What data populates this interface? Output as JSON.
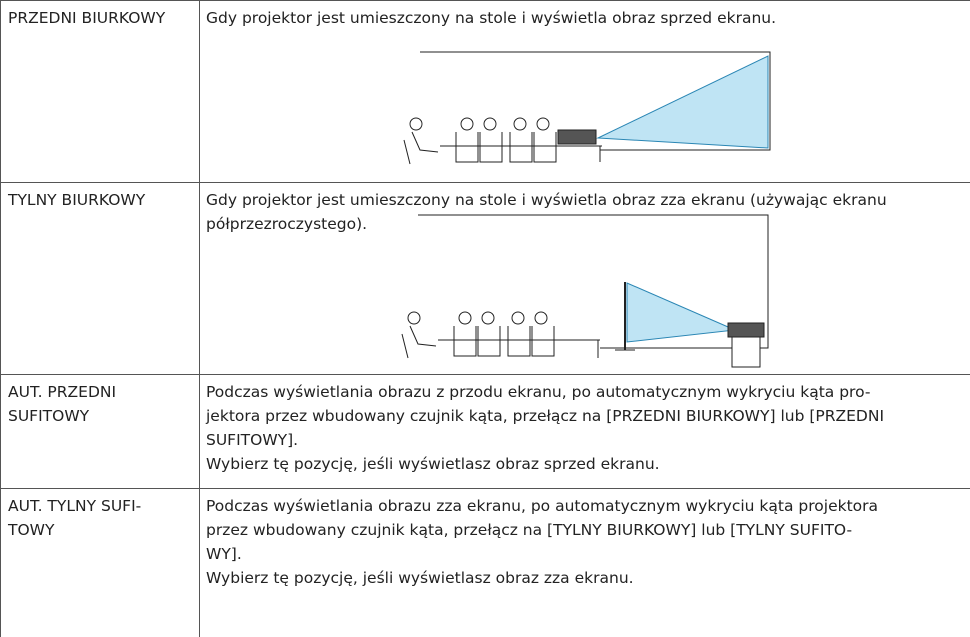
{
  "rows": [
    {
      "term": [
        "PRZEDNI BIURKOWY"
      ],
      "description": [
        "Gdy projektor jest umieszczony na stole i wyświetla obraz sprzed ekranu."
      ]
    },
    {
      "term": [
        "TYLNY BIURKOWY"
      ],
      "description": [
        "Gdy projektor jest umieszczony na stole i wyświetla obraz zza ekranu (używając ekranu",
        "półprzezroczystego)."
      ]
    },
    {
      "term": [
        "AUT. PRZEDNI",
        "SUFITOWY"
      ],
      "description": [
        "Podczas wyświetlania obrazu z przodu ekranu, po automatycznym wykryciu kąta pro-",
        "jektora przez wbudowany czujnik kąta, przełącz na [PRZEDNI BIURKOWY] lub [PRZEDNI",
        "SUFITOWY].",
        "Wybierz tę pozycję, jeśli wyświetlasz obraz sprzed ekranu."
      ]
    },
    {
      "term": [
        "AUT. TYLNY SUFI-",
        "TOWY"
      ],
      "description": [
        "Podczas wyświetlania obrazu zza ekranu, po automatycznym wykryciu kąta projektora",
        "przez wbudowany czujnik kąta, przełącz na [TYLNY BIURKOWY] lub [TYLNY SUFITO-",
        "WY].",
        "Wybierz tę pozycję, jeśli wyświetlasz obraz zza ekranu."
      ]
    }
  ]
}
